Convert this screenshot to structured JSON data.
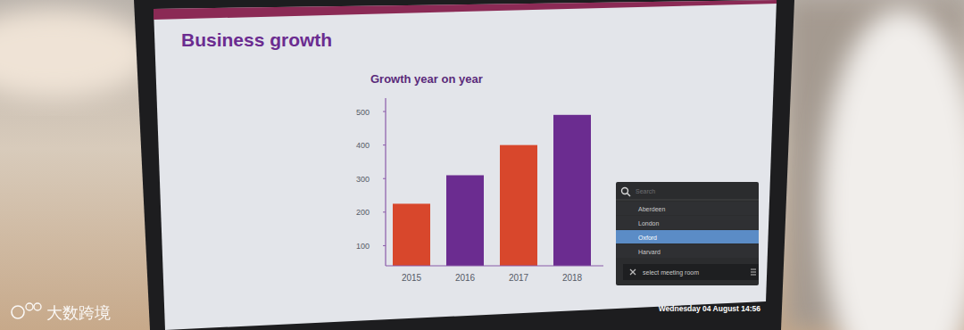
{
  "slide": {
    "heading": "Business growth"
  },
  "chart_data": {
    "type": "bar",
    "title": "Growth year on year",
    "categories": [
      "2015",
      "2016",
      "2017",
      "2018"
    ],
    "values": [
      225,
      310,
      400,
      490
    ],
    "colors": [
      "#d8472c",
      "#6b2c90",
      "#d8472c",
      "#6b2c90"
    ],
    "ylim": [
      40,
      540
    ],
    "yticks": [
      100,
      200,
      300,
      400,
      500
    ],
    "grid": false
  },
  "room_picker": {
    "search_placeholder": "Search",
    "rooms": [
      "Aberdeen",
      "London",
      "Oxford",
      "Harvard"
    ],
    "selected": "Oxford",
    "prompt": "select meeting room"
  },
  "status_bar": {
    "datetime": "Wednesday 04 August 14:56"
  },
  "watermark": {
    "text": "大数跨境"
  }
}
